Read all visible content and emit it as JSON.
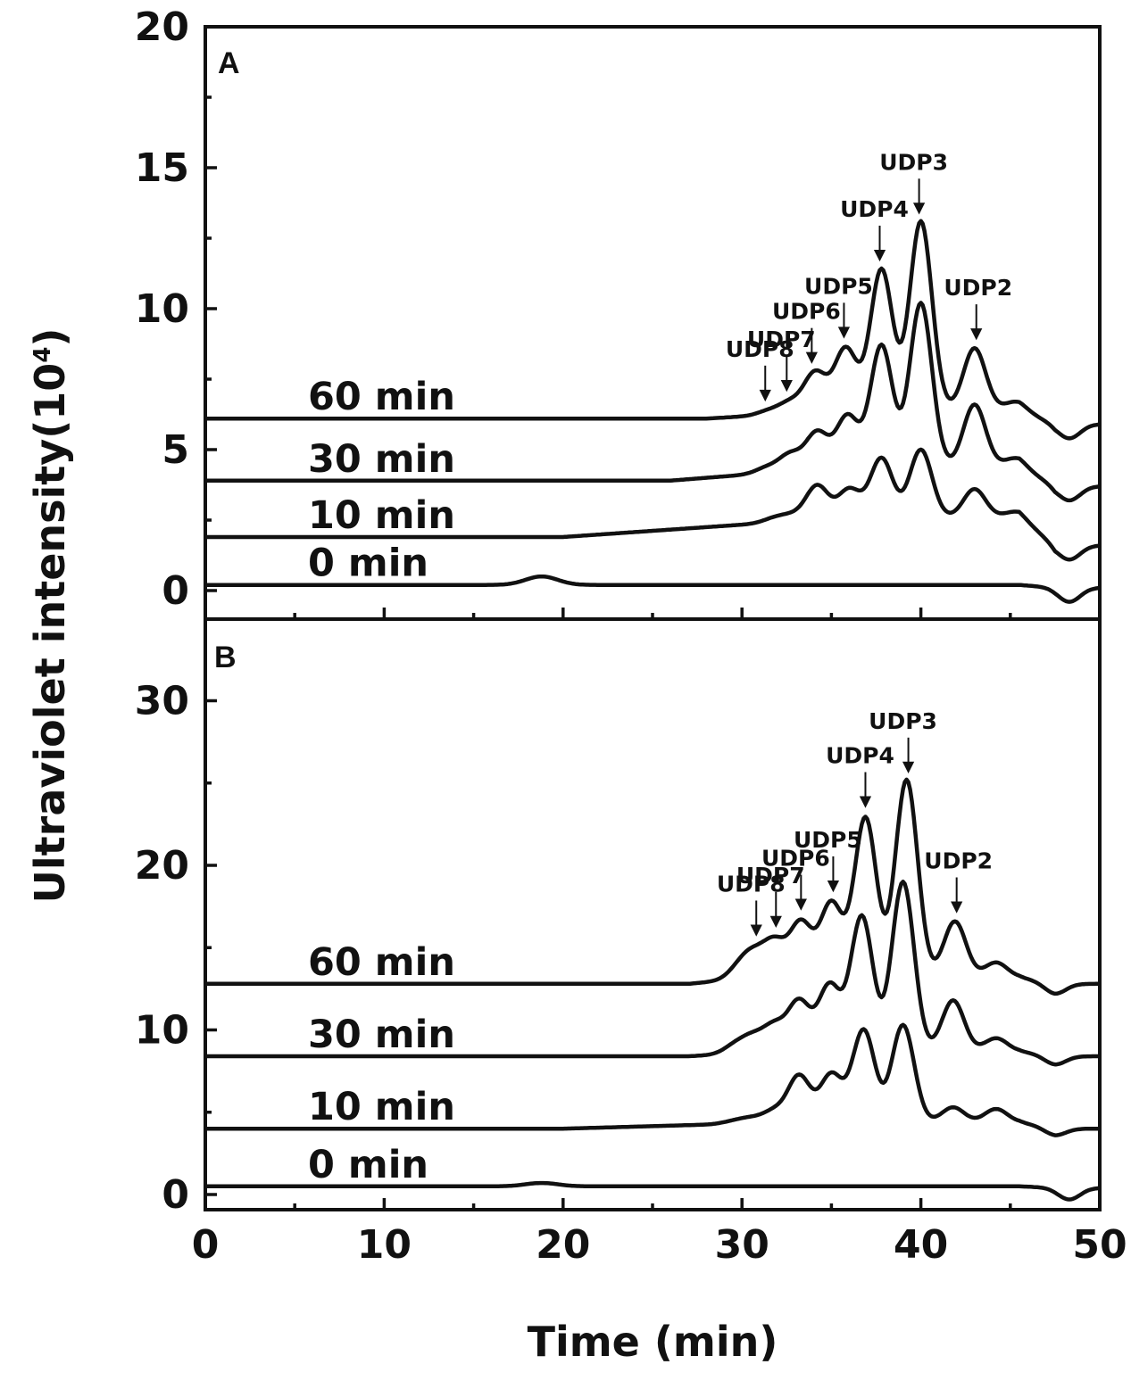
{
  "chart_data": [
    {
      "panel": "A",
      "type": "line",
      "xlim": [
        0,
        50
      ],
      "ylim": [
        -1,
        20
      ],
      "yticks": [
        0,
        5,
        10,
        15,
        20
      ],
      "xticks": [
        0,
        10,
        20,
        30,
        40,
        50
      ],
      "xlabel": "Time (min)",
      "ylabel": "Ultraviolet intensity(10",
      "ylabel_sup": "4",
      "ylabel_close": ")",
      "series": [
        {
          "name": "0 min",
          "baseline": 0.2,
          "bump": {
            "x": 18.8,
            "height": 0.3,
            "width": 0.9
          },
          "dip": {
            "x": 48.3,
            "height": -0.5,
            "width": 0.6
          },
          "endLevel": 0.1,
          "tailRise": {
            "x0": 99,
            "x1": 99,
            "amount": 0
          },
          "peaks": []
        },
        {
          "name": "10 min",
          "baseline": 1.9,
          "bump": null,
          "dip": {
            "x": 48.3,
            "height": -0.5,
            "width": 0.6
          },
          "endLevel": 1.6,
          "tailRise": {
            "x0": 20,
            "x1": 36,
            "amount": 0.7
          },
          "peaks": [
            {
              "x": 31.8,
              "h": 0.15
            },
            {
              "x": 32.8,
              "h": 0.2
            },
            {
              "x": 34.2,
              "h": 1.2
            },
            {
              "x": 36.0,
              "h": 1.0
            },
            {
              "x": 37.8,
              "h": 2.1
            },
            {
              "x": 40.0,
              "h": 2.4
            },
            {
              "x": 43.0,
              "h": 1.0
            },
            {
              "x": 45.3,
              "h": 0.2
            }
          ]
        },
        {
          "name": "30 min",
          "baseline": 3.9,
          "bump": null,
          "dip": {
            "x": 48.3,
            "height": -0.5,
            "width": 0.6
          },
          "endLevel": 3.7,
          "tailRise": {
            "x0": 26,
            "x1": 36,
            "amount": 0.5
          },
          "peaks": [
            {
              "x": 31.4,
              "h": 0.2
            },
            {
              "x": 32.7,
              "h": 0.6
            },
            {
              "x": 34.2,
              "h": 1.3
            },
            {
              "x": 35.9,
              "h": 1.8
            },
            {
              "x": 37.8,
              "h": 4.3
            },
            {
              "x": 40.0,
              "h": 5.8
            },
            {
              "x": 43.0,
              "h": 2.2
            },
            {
              "x": 45.3,
              "h": 0.3
            }
          ]
        },
        {
          "name": "60 min",
          "baseline": 6.1,
          "bump": null,
          "dip": {
            "x": 48.3,
            "height": -0.5,
            "width": 0.6
          },
          "endLevel": 5.9,
          "tailRise": {
            "x0": 28,
            "x1": 36,
            "amount": 0.3
          },
          "peaks": [
            {
              "x": 31.5,
              "h": 0.15
            },
            {
              "x": 32.7,
              "h": 0.4
            },
            {
              "x": 34.1,
              "h": 1.4
            },
            {
              "x": 35.8,
              "h": 2.2
            },
            {
              "x": 37.8,
              "h": 5.0
            },
            {
              "x": 40.0,
              "h": 6.7
            },
            {
              "x": 43.0,
              "h": 2.2
            },
            {
              "x": 45.3,
              "h": 0.3
            }
          ]
        }
      ],
      "annotations": [
        {
          "label": "UDP8",
          "x": 31.3
        },
        {
          "label": "UDP7",
          "x": 32.5
        },
        {
          "label": "UDP6",
          "x": 33.9
        },
        {
          "label": "UDP5",
          "x": 35.7
        },
        {
          "label": "UDP4",
          "x": 37.7
        },
        {
          "label": "UDP3",
          "x": 39.9
        },
        {
          "label": "UDP2",
          "x": 43.1
        }
      ]
    },
    {
      "panel": "B",
      "type": "line",
      "xlim": [
        0,
        50
      ],
      "ylim": [
        -1,
        35
      ],
      "yticks": [
        0,
        10,
        20,
        30
      ],
      "xticks": [
        0,
        10,
        20,
        30,
        40,
        50
      ],
      "series": [
        {
          "name": "0 min",
          "baseline": 0.5,
          "bump": {
            "x": 18.8,
            "height": 0.2,
            "width": 0.9
          },
          "dip": {
            "x": 48.3,
            "height": -0.7,
            "width": 0.6
          },
          "endLevel": 0.4,
          "tailRise": {
            "x0": 99,
            "x1": 99,
            "amount": 0
          },
          "peaks": []
        },
        {
          "name": "10 min",
          "baseline": 4.0,
          "bump": null,
          "dip": {
            "x": 47.5,
            "height": -0.4,
            "width": 0.6
          },
          "endLevel": 4.0,
          "tailRise": {
            "x0": 20,
            "x1": 33,
            "amount": 0.4
          },
          "peaks": [
            {
              "x": 29.5,
              "h": 0.15
            },
            {
              "x": 30.5,
              "h": 0.3
            },
            {
              "x": 31.8,
              "h": 0.7
            },
            {
              "x": 33.2,
              "h": 2.8
            },
            {
              "x": 35.0,
              "h": 2.9
            },
            {
              "x": 36.8,
              "h": 5.6
            },
            {
              "x": 39.0,
              "h": 5.9
            },
            {
              "x": 41.8,
              "h": 0.9
            },
            {
              "x": 44.2,
              "h": 0.8
            }
          ]
        },
        {
          "name": "30 min",
          "baseline": 8.4,
          "bump": null,
          "dip": {
            "x": 47.5,
            "height": -0.5,
            "width": 0.6
          },
          "endLevel": 8.4,
          "tailRise": {
            "x0": 27,
            "x1": 32,
            "amount": 0.3
          },
          "peaks": [
            {
              "x": 29.6,
              "h": 0.5
            },
            {
              "x": 30.6,
              "h": 0.9
            },
            {
              "x": 31.8,
              "h": 1.5
            },
            {
              "x": 33.2,
              "h": 3.0
            },
            {
              "x": 34.9,
              "h": 4.0
            },
            {
              "x": 36.7,
              "h": 8.2
            },
            {
              "x": 39.0,
              "h": 10.3
            },
            {
              "x": 41.8,
              "h": 3.1
            },
            {
              "x": 44.2,
              "h": 0.8
            }
          ]
        },
        {
          "name": "60 min",
          "baseline": 12.8,
          "bump": null,
          "dip": {
            "x": 47.5,
            "height": -0.6,
            "width": 0.6
          },
          "endLevel": 12.8,
          "tailRise": {
            "x0": 27,
            "x1": 31,
            "amount": 0.4
          },
          "peaks": [
            {
              "x": 29.8,
              "h": 0.6
            },
            {
              "x": 30.6,
              "h": 1.3
            },
            {
              "x": 31.8,
              "h": 2.1
            },
            {
              "x": 33.3,
              "h": 3.3
            },
            {
              "x": 35.0,
              "h": 4.5
            },
            {
              "x": 36.9,
              "h": 9.7
            },
            {
              "x": 39.2,
              "h": 12.0
            },
            {
              "x": 41.9,
              "h": 3.4
            },
            {
              "x": 44.2,
              "h": 0.9
            }
          ]
        }
      ],
      "annotations": [
        {
          "label": "UDP8",
          "x": 30.8
        },
        {
          "label": "UDP7",
          "x": 31.9
        },
        {
          "label": "UDP6",
          "x": 33.3
        },
        {
          "label": "UDP5",
          "x": 35.1
        },
        {
          "label": "UDP4",
          "x": 36.9
        },
        {
          "label": "UDP3",
          "x": 39.3
        },
        {
          "label": "UDP2",
          "x": 42.0
        }
      ]
    }
  ]
}
